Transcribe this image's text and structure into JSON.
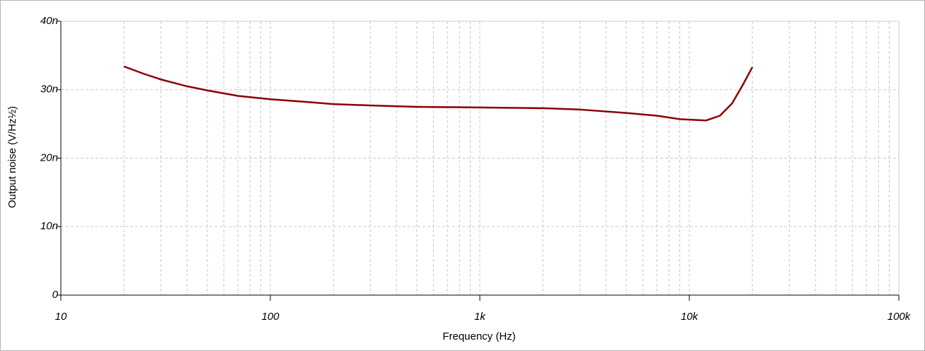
{
  "chart_data": {
    "type": "line",
    "x_label": "Frequency (Hz)",
    "y_label": "Output noise (V/Hz½)",
    "log_x": true,
    "grid": true,
    "xlim": [
      10,
      100000
    ],
    "xticks": [
      10,
      100,
      {
        "value": 1000,
        "label": "1k"
      },
      {
        "value": 10000,
        "label": "10k"
      },
      {
        "value": 100000,
        "label": "100k"
      }
    ],
    "x_minor_grid": [
      20,
      30,
      40,
      50,
      60,
      70,
      80,
      90,
      200,
      300,
      400,
      500,
      600,
      700,
      800,
      900,
      2000,
      3000,
      4000,
      5000,
      6000,
      7000,
      8000,
      9000,
      20000,
      30000,
      40000,
      50000,
      60000,
      70000,
      80000,
      90000
    ],
    "ylim": [
      0,
      4e-08
    ],
    "yticks": [
      {
        "value": 0,
        "label": "0"
      },
      {
        "value": 1e-08,
        "label": "10n"
      },
      {
        "value": 2e-08,
        "label": "20n"
      },
      {
        "value": 3e-08,
        "label": "30n"
      },
      {
        "value": 4e-08,
        "label": "40n"
      }
    ],
    "x": [
      20,
      25,
      30,
      40,
      50,
      70,
      100,
      150,
      200,
      300,
      500,
      1000,
      2000,
      3000,
      5000,
      7000,
      9000,
      12000,
      14000,
      16000,
      18000,
      20000
    ],
    "series": [
      {
        "color": "#8b0000",
        "values": [
          3.34e-08,
          3.23e-08,
          3.15e-08,
          3.05e-08,
          2.99e-08,
          2.91e-08,
          2.86e-08,
          2.82e-08,
          2.79e-08,
          2.77e-08,
          2.75e-08,
          2.74e-08,
          2.73e-08,
          2.71e-08,
          2.66e-08,
          2.62e-08,
          2.57e-08,
          2.55e-08,
          2.62e-08,
          2.8e-08,
          3.07e-08,
          3.33e-08
        ]
      }
    ]
  }
}
